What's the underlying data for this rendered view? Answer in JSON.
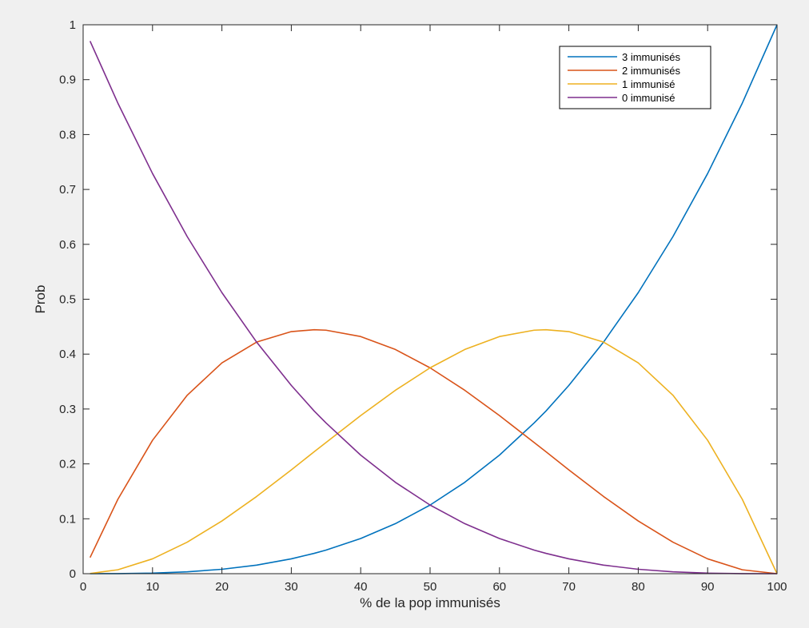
{
  "chart_data": {
    "type": "line",
    "title": "",
    "xlabel": "% de la pop immunisés",
    "ylabel": "Prob",
    "xlim": [
      0,
      100
    ],
    "ylim": [
      0,
      1
    ],
    "xticks": [
      0,
      10,
      20,
      30,
      40,
      50,
      60,
      70,
      80,
      90,
      100
    ],
    "yticks": [
      0,
      0.1,
      0.2,
      0.3,
      0.4,
      0.5,
      0.6,
      0.7,
      0.8,
      0.9,
      1
    ],
    "grid": false,
    "legend_position": "top-right",
    "x": [
      1,
      5,
      10,
      15,
      20,
      25,
      30,
      33.3,
      35,
      40,
      45,
      50,
      55,
      60,
      65,
      66.7,
      70,
      75,
      80,
      85,
      90,
      95,
      100
    ],
    "series": [
      {
        "name": "3 immunisés",
        "color": "#0072bd",
        "values": [
          1e-06,
          0.000125,
          0.001,
          0.0034,
          0.008,
          0.0156,
          0.027,
          0.037,
          0.0429,
          0.064,
          0.0911,
          0.125,
          0.1664,
          0.216,
          0.2746,
          0.2963,
          0.343,
          0.4219,
          0.512,
          0.6141,
          0.729,
          0.8574,
          1
        ]
      },
      {
        "name": "2 immunisés",
        "color": "#d95319",
        "values": [
          0.0294,
          0.1354,
          0.243,
          0.3251,
          0.384,
          0.4219,
          0.441,
          0.4444,
          0.4436,
          0.432,
          0.4084,
          0.375,
          0.3341,
          0.288,
          0.2389,
          0.2222,
          0.189,
          0.1406,
          0.096,
          0.0574,
          0.027,
          0.0071,
          0
        ]
      },
      {
        "name": "1 immunisé",
        "color": "#edb120",
        "values": [
          0.0003,
          0.0071,
          0.027,
          0.0574,
          0.096,
          0.1406,
          0.189,
          0.2222,
          0.2389,
          0.288,
          0.3341,
          0.375,
          0.4084,
          0.432,
          0.4436,
          0.4444,
          0.441,
          0.4219,
          0.384,
          0.3251,
          0.243,
          0.1354,
          0
        ]
      },
      {
        "name": "0 immunisé",
        "color": "#7e2f8e",
        "values": [
          0.9703,
          0.8574,
          0.729,
          0.6141,
          0.512,
          0.4219,
          0.343,
          0.2963,
          0.2746,
          0.216,
          0.1664,
          0.125,
          0.0911,
          0.064,
          0.0429,
          0.037,
          0.027,
          0.0156,
          0.008,
          0.0034,
          0.001,
          0.0001,
          0
        ]
      }
    ]
  }
}
